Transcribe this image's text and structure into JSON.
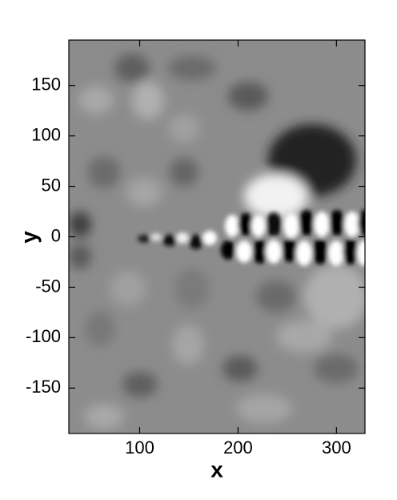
{
  "chart_data": {
    "type": "contour",
    "x_label": "x",
    "y_label": "y",
    "xlim": [
      28,
      329
    ],
    "ylim": [
      -195,
      195
    ],
    "xticks": [
      100,
      200,
      300
    ],
    "yticks": [
      -150,
      -100,
      -50,
      0,
      50,
      100,
      150
    ]
  }
}
